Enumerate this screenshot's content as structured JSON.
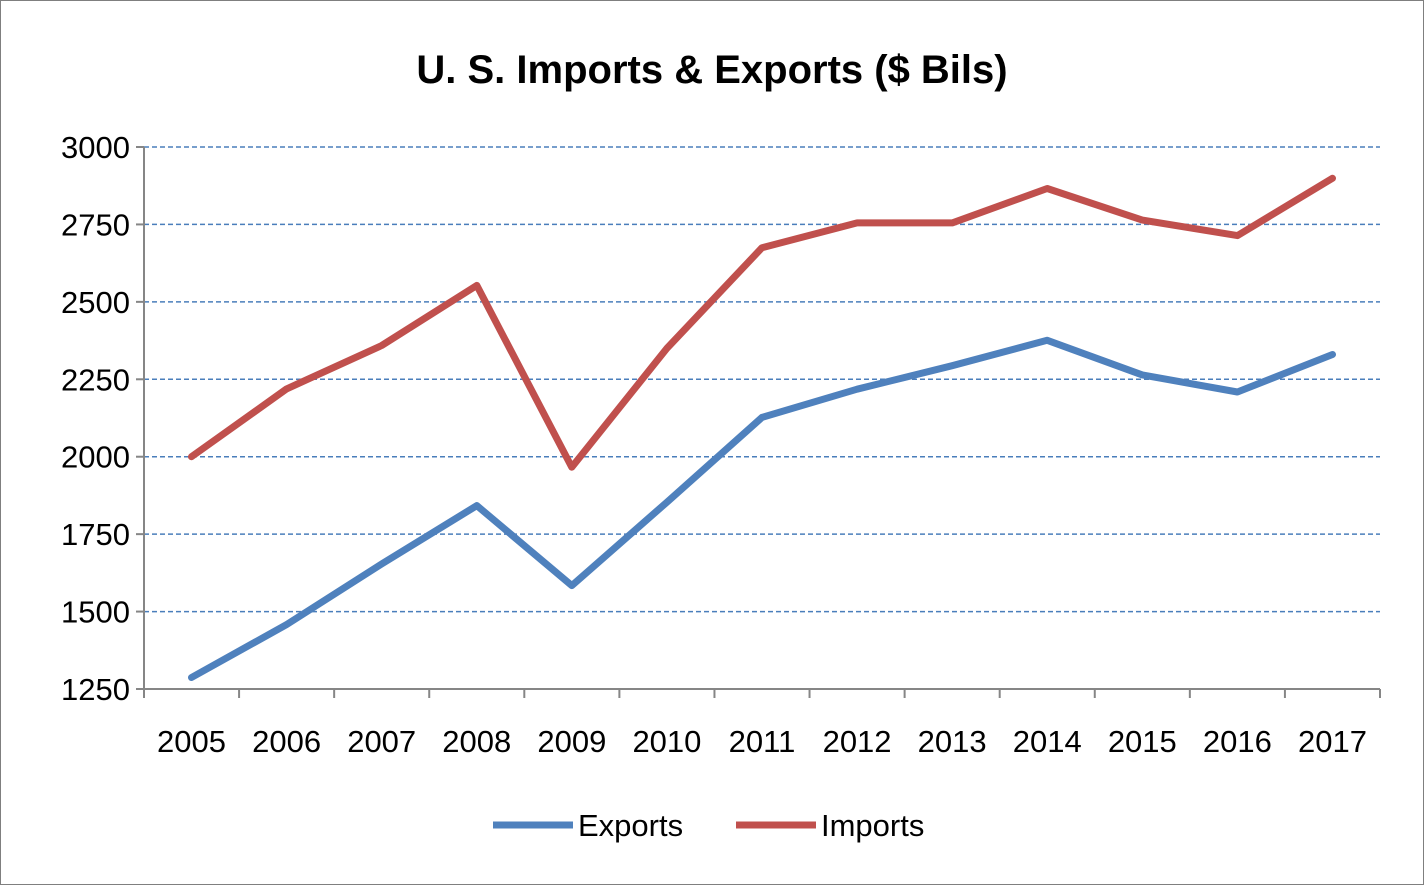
{
  "chart_data": {
    "type": "line",
    "title": "U. S. Imports & Exports ($ Bils)",
    "xlabel": "",
    "ylabel": "",
    "categories": [
      "2005",
      "2006",
      "2007",
      "2008",
      "2009",
      "2010",
      "2011",
      "2012",
      "2013",
      "2014",
      "2015",
      "2016",
      "2017"
    ],
    "ylim": [
      1250,
      3000
    ],
    "yticks": [
      1250,
      1500,
      1750,
      2000,
      2250,
      2500,
      2750,
      3000
    ],
    "grid": true,
    "legend_position": "bottom",
    "series": [
      {
        "name": "Exports",
        "color": "#4f81bd",
        "values": [
          1287,
          1458,
          1654,
          1842,
          1584,
          1853,
          2127,
          2218,
          2294,
          2376,
          2264,
          2209,
          2330
        ]
      },
      {
        "name": "Imports",
        "color": "#c0504d",
        "values": [
          2000,
          2219,
          2359,
          2553,
          1966,
          2350,
          2675,
          2755,
          2755,
          2866,
          2764,
          2714,
          2899
        ]
      }
    ]
  }
}
